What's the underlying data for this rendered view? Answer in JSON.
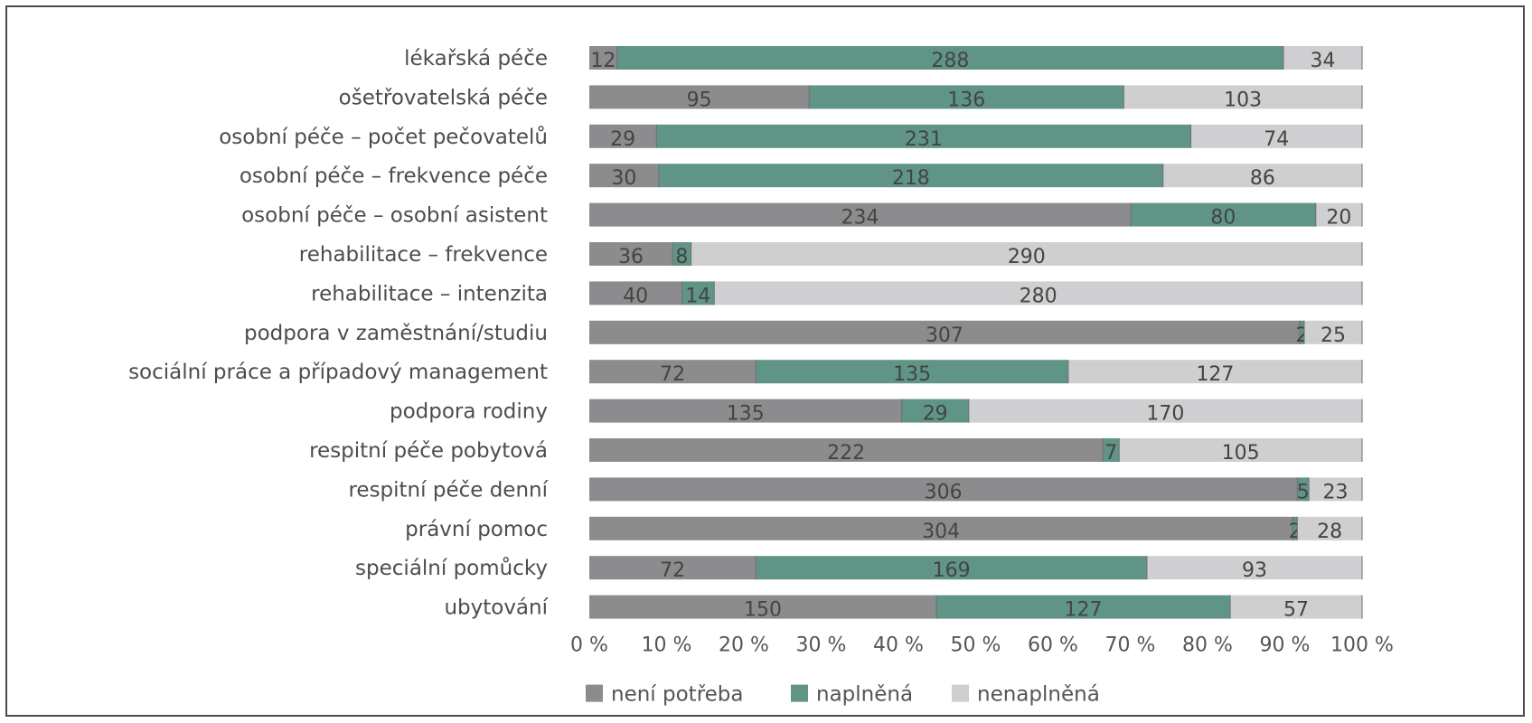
{
  "chart_data": {
    "type": "bar",
    "orientation": "horizontal",
    "stacked": "percent",
    "categories": [
      "lékařská péče",
      "ošetřovatelská péče",
      "osobní péče – počet pečovatelů",
      "osobní péče – frekvence péče",
      "osobní péče – osobní asistent",
      "rehabilitace – frekvence",
      "rehabilitace – intenzita",
      "podpora v zaměstnání/studiu",
      "sociální práce a případový management",
      "podpora rodiny",
      "respitní péče pobytová",
      "respitní péče denní",
      "právní pomoc",
      "speciální pomůcky",
      "ubytování"
    ],
    "series": [
      {
        "name": "není potřeba",
        "color": "#8c8c8f",
        "values": [
          12,
          95,
          29,
          30,
          234,
          36,
          40,
          307,
          72,
          135,
          222,
          306,
          304,
          72,
          150
        ]
      },
      {
        "name": "naplněná",
        "color": "#5f9486",
        "values": [
          288,
          136,
          231,
          218,
          80,
          8,
          14,
          2,
          135,
          29,
          7,
          5,
          2,
          169,
          127
        ]
      },
      {
        "name": "nenaplněná",
        "color": "#cfcfd1",
        "values": [
          34,
          103,
          74,
          86,
          20,
          290,
          280,
          25,
          127,
          170,
          105,
          23,
          28,
          93,
          57
        ]
      }
    ],
    "x_ticks": [
      "0 %",
      "10 %",
      "20 %",
      "30 %",
      "40 %",
      "50 %",
      "60 %",
      "70 %",
      "80 %",
      "90 %",
      "100 %"
    ],
    "xlim": [
      0,
      100
    ],
    "legend_position": "bottom",
    "grid": false,
    "title": "",
    "xlabel": "",
    "ylabel": ""
  }
}
